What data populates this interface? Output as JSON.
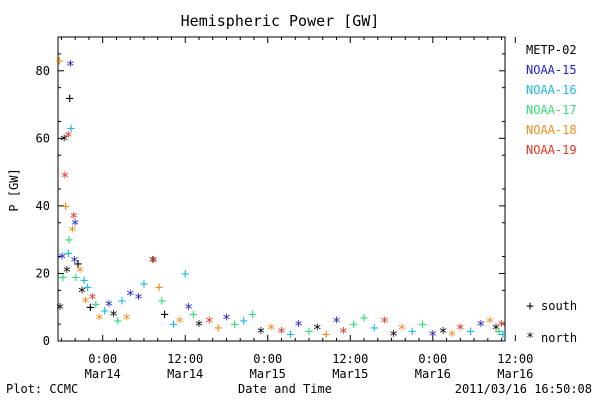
{
  "chart_data": {
    "type": "scatter",
    "title": "Hemispheric Power [GW]",
    "ylabel": "P [GW]",
    "xlabel": "Date and Time",
    "ylim": [
      0,
      90
    ],
    "yticks": [
      0,
      20,
      40,
      60,
      80
    ],
    "xlim_hours": [
      -6.5,
      58.5
    ],
    "x_ticks": [
      {
        "hour": 0,
        "time": "0:00",
        "date": "Mar14"
      },
      {
        "hour": 12,
        "time": "12:00",
        "date": "Mar14"
      },
      {
        "hour": 24,
        "time": "0:00",
        "date": "Mar15"
      },
      {
        "hour": 36,
        "time": "12:00",
        "date": "Mar15"
      },
      {
        "hour": 48,
        "time": "0:00",
        "date": "Mar16"
      },
      {
        "hour": 60,
        "time": "12:00",
        "date": "Mar16"
      }
    ],
    "series": [
      {
        "name": "METP-02",
        "color": "#000000"
      },
      {
        "name": "NOAA-15",
        "color": "#2222cc"
      },
      {
        "name": "NOAA-16",
        "color": "#22b8e6"
      },
      {
        "name": "NOAA-17",
        "color": "#33dd77"
      },
      {
        "name": "NOAA-18",
        "color": "#f08c1e"
      },
      {
        "name": "NOAA-19",
        "color": "#e63322"
      }
    ],
    "markers": {
      "south": "+",
      "north": "*"
    },
    "marker_legend": [
      {
        "symbol": "+",
        "label": "south"
      },
      {
        "symbol": "*",
        "label": "north"
      }
    ],
    "points": [
      [
        -6.2,
        10,
        0,
        1
      ],
      [
        -5.9,
        25,
        1,
        1
      ],
      [
        -5.6,
        60,
        0,
        1
      ],
      [
        -5.5,
        49,
        5,
        1
      ],
      [
        -5.0,
        61,
        5,
        1
      ],
      [
        -4.7,
        82,
        1,
        1
      ],
      [
        -4.8,
        72,
        0,
        0
      ],
      [
        -4.6,
        63,
        2,
        0
      ],
      [
        -6.3,
        83,
        4,
        0
      ],
      [
        -5.8,
        19,
        3,
        0
      ],
      [
        -4.2,
        37,
        5,
        1
      ],
      [
        -4.0,
        35,
        1,
        1
      ],
      [
        -3.6,
        23,
        0,
        0
      ],
      [
        -3.3,
        21,
        4,
        1
      ],
      [
        -3.0,
        15,
        0,
        1
      ],
      [
        -2.7,
        18,
        2,
        0
      ],
      [
        -5.2,
        21,
        0,
        1
      ],
      [
        -5.0,
        26,
        2,
        0
      ],
      [
        -4.4,
        33,
        4,
        1
      ],
      [
        -4.9,
        30,
        3,
        0
      ],
      [
        -5.4,
        40,
        4,
        0
      ],
      [
        -4.1,
        24,
        1,
        1
      ],
      [
        -3.9,
        19,
        3,
        0
      ],
      [
        -2.5,
        12,
        4,
        1
      ],
      [
        -2.2,
        16,
        2,
        0
      ],
      [
        -1.8,
        10,
        0,
        0
      ],
      [
        -1.5,
        13,
        5,
        1
      ],
      [
        -1.0,
        11,
        3,
        0
      ],
      [
        -0.5,
        7,
        4,
        1
      ],
      [
        0.3,
        9,
        2,
        0
      ],
      [
        0.9,
        11,
        1,
        1
      ],
      [
        1.6,
        8,
        0,
        1
      ],
      [
        2.2,
        6,
        3,
        0
      ],
      [
        2.8,
        12,
        2,
        0
      ],
      [
        3.5,
        7,
        4,
        1
      ],
      [
        4.0,
        14,
        1,
        1
      ],
      [
        5.2,
        13,
        1,
        1
      ],
      [
        6.0,
        17,
        2,
        0
      ],
      [
        7.3,
        24,
        0,
        1
      ],
      [
        7.4,
        24,
        5,
        1
      ],
      [
        8.2,
        16,
        4,
        0
      ],
      [
        8.6,
        12,
        3,
        0
      ],
      [
        9.0,
        8,
        0,
        0
      ],
      [
        10.3,
        5,
        2,
        0
      ],
      [
        11.2,
        6,
        4,
        1
      ],
      [
        12.0,
        20,
        2,
        0
      ],
      [
        12.5,
        10,
        1,
        1
      ],
      [
        13.2,
        8,
        3,
        0
      ],
      [
        14.0,
        5,
        0,
        1
      ],
      [
        15.5,
        6,
        5,
        1
      ],
      [
        16.8,
        4,
        4,
        0
      ],
      [
        18.0,
        7,
        1,
        1
      ],
      [
        19.2,
        5,
        3,
        0
      ],
      [
        20.5,
        6,
        2,
        0
      ],
      [
        21.8,
        8,
        3,
        0
      ],
      [
        23.0,
        3,
        0,
        1
      ],
      [
        24.5,
        4,
        4,
        1
      ],
      [
        26.0,
        3,
        5,
        1
      ],
      [
        27.3,
        2,
        2,
        0
      ],
      [
        28.5,
        5,
        1,
        1
      ],
      [
        30.0,
        3,
        3,
        0
      ],
      [
        31.2,
        4,
        0,
        1
      ],
      [
        32.5,
        2,
        4,
        0
      ],
      [
        34.0,
        6,
        1,
        1
      ],
      [
        35.0,
        3,
        5,
        1
      ],
      [
        36.5,
        5,
        3,
        0
      ],
      [
        38.0,
        7,
        3,
        0
      ],
      [
        39.5,
        4,
        2,
        0
      ],
      [
        41.0,
        6,
        5,
        1
      ],
      [
        42.3,
        2,
        0,
        1
      ],
      [
        43.5,
        4,
        4,
        1
      ],
      [
        45.0,
        3,
        2,
        0
      ],
      [
        46.5,
        5,
        3,
        0
      ],
      [
        48.0,
        2,
        1,
        1
      ],
      [
        49.5,
        3,
        0,
        1
      ],
      [
        50.8,
        2,
        4,
        1
      ],
      [
        52.0,
        4,
        5,
        1
      ],
      [
        53.5,
        3,
        2,
        0
      ],
      [
        55.0,
        5,
        1,
        1
      ],
      [
        56.3,
        6,
        4,
        1
      ],
      [
        57.2,
        4,
        0,
        1
      ],
      [
        57.6,
        3,
        3,
        0
      ],
      [
        58.0,
        5,
        5,
        1
      ],
      [
        58.2,
        2,
        2,
        0
      ]
    ]
  },
  "footer": {
    "plot_source": "Plot: CCMC",
    "axis_title": "Date and Time",
    "timestamp": "2011/03/16 16:50:08"
  }
}
